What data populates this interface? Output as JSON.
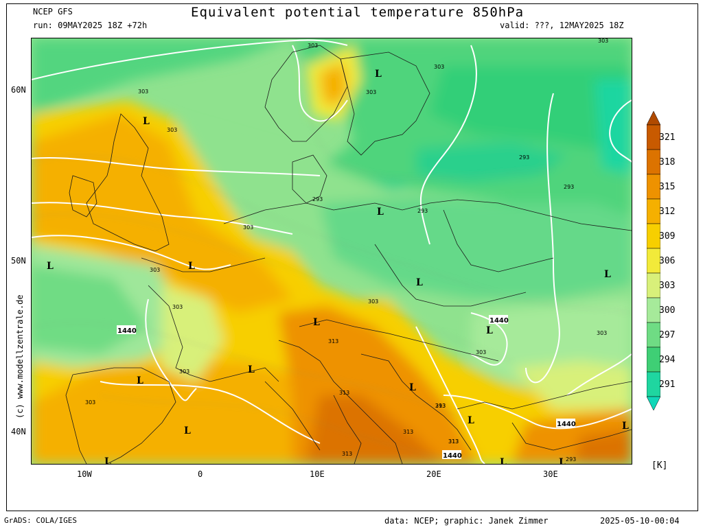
{
  "header": {
    "model": "NCEP GFS",
    "run": "run: 09MAY2025 18Z +72h",
    "title": "Equivalent potential temperature 850hPa",
    "valid": "valid: ???, 12MAY2025 18Z"
  },
  "axes": {
    "lat_labels": [
      "60N",
      "50N",
      "40N"
    ],
    "lon_labels": [
      "10W",
      "0",
      "10E",
      "20E",
      "30E"
    ]
  },
  "colorbar": {
    "levels": [
      "321",
      "318",
      "315",
      "312",
      "309",
      "306",
      "303",
      "300",
      "297",
      "294",
      "291"
    ],
    "colors": [
      "#c85a00",
      "#dc7300",
      "#ee9200",
      "#f5b000",
      "#f7cf00",
      "#f2ea3a",
      "#d8f07a",
      "#a6ea9a",
      "#6fdc84",
      "#3fcf75",
      "#1fd6a0"
    ],
    "unit": "[K]"
  },
  "map_labels": {
    "lows": [
      "L",
      "L",
      "L",
      "L",
      "L",
      "L",
      "L",
      "L",
      "L",
      "L",
      "L",
      "L",
      "L",
      "L",
      "L",
      "L",
      "L",
      "L"
    ],
    "contours": [
      "303",
      "303",
      "303",
      "303",
      "303",
      "303",
      "303",
      "303",
      "303",
      "303",
      "303",
      "303",
      "303",
      "303",
      "293",
      "293",
      "293",
      "293",
      "293",
      "293",
      "313",
      "313",
      "313",
      "313",
      "313",
      "313",
      "313"
    ],
    "geopotential": [
      "1440",
      "1440",
      "1440",
      "1440"
    ]
  },
  "watermark": "(c) www.modellzentrale.de",
  "footer": {
    "left": "GrADS: COLA/IGES",
    "middle": "data: NCEP; graphic: Janek Zimmer",
    "right": "2025-05-10-00:04"
  }
}
